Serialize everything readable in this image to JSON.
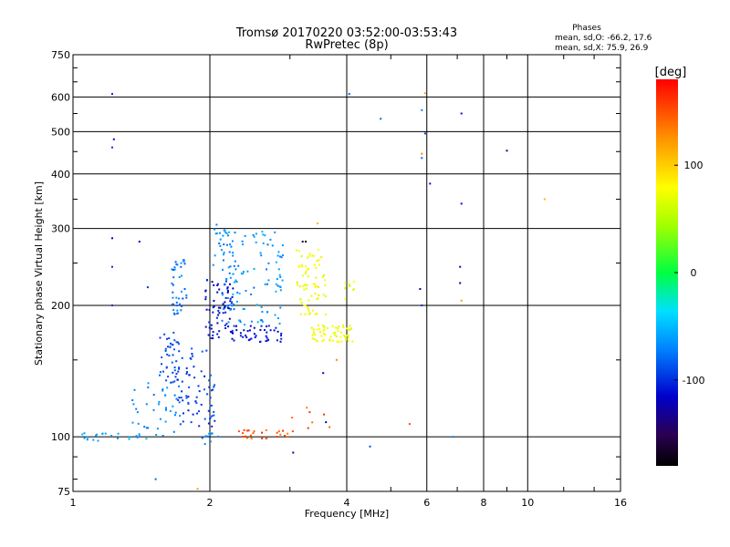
{
  "header": {
    "title_line1": "Tromsø 20170220 03:52:00-03:53:43",
    "title_line2": "RwPretec (8p)"
  },
  "stats": {
    "heading": "Phases",
    "line_o": "mean, sd,O: -66.2, 17.6",
    "line_x": "mean, sd,X:  75.9, 26.9"
  },
  "colorbar": {
    "unit": "[deg]",
    "range": [
      -180,
      180
    ],
    "ticks": [
      {
        "value": 100,
        "label": "100"
      },
      {
        "value": 0,
        "label": "0"
      },
      {
        "value": -100,
        "label": "-100"
      }
    ]
  },
  "chart_data": {
    "type": "scatter",
    "xlabel": "Frequency [MHz]",
    "ylabel": "Stationary phase Virtual Height [km]",
    "xscale": "log",
    "yscale": "log",
    "xlim": [
      1,
      16
    ],
    "ylim": [
      75,
      750
    ],
    "xticks": [
      {
        "value": 1,
        "label": "1"
      },
      {
        "value": 2,
        "label": "2"
      },
      {
        "value": 4,
        "label": "4"
      },
      {
        "value": 6,
        "label": "6"
      },
      {
        "value": 8,
        "label": "8"
      },
      {
        "value": 10,
        "label": "10"
      },
      {
        "value": 16,
        "label": "16"
      }
    ],
    "yticks": [
      {
        "value": 75,
        "label": "75"
      },
      {
        "value": 100,
        "label": "100"
      },
      {
        "value": 200,
        "label": "200"
      },
      {
        "value": 300,
        "label": "300"
      },
      {
        "value": 400,
        "label": "400"
      },
      {
        "value": 500,
        "label": "500"
      },
      {
        "value": 600,
        "label": "600"
      },
      {
        "value": 750,
        "label": "750"
      }
    ],
    "grid": true,
    "clusters": [
      {
        "x": [
          1.35,
          1.72
        ],
        "y": [
          100,
          135
        ],
        "n": 40,
        "phase": [
          -80,
          -60
        ]
      },
      {
        "x": [
          1.55,
          1.72
        ],
        "y": [
          130,
          175
        ],
        "n": 45,
        "phase": [
          -100,
          -80
        ]
      },
      {
        "x": [
          1.7,
          2.05
        ],
        "y": [
          105,
          160
        ],
        "n": 70,
        "phase": [
          -110,
          -80
        ]
      },
      {
        "x": [
          1.65,
          1.78
        ],
        "y": [
          190,
          260
        ],
        "n": 40,
        "phase": [
          -90,
          -60
        ]
      },
      {
        "x": [
          1.95,
          2.25
        ],
        "y": [
          165,
          230
        ],
        "n": 70,
        "phase": [
          -130,
          -100
        ]
      },
      {
        "x": [
          2.2,
          2.9
        ],
        "y": [
          165,
          180
        ],
        "n": 45,
        "phase": [
          -120,
          -100
        ]
      },
      {
        "x": [
          2.1,
          2.9
        ],
        "y": [
          180,
          300
        ],
        "n": 110,
        "phase": [
          -80,
          -50
        ]
      },
      {
        "x": [
          2.0,
          2.25
        ],
        "y": [
          240,
          315
        ],
        "n": 20,
        "phase": [
          -80,
          -60
        ]
      },
      {
        "x": [
          3.1,
          3.6
        ],
        "y": [
          190,
          270
        ],
        "n": 70,
        "phase": [
          60,
          90
        ]
      },
      {
        "x": [
          3.35,
          4.15
        ],
        "y": [
          165,
          180
        ],
        "n": 60,
        "phase": [
          60,
          90
        ]
      },
      {
        "x": [
          3.95,
          4.15
        ],
        "y": [
          205,
          235
        ],
        "n": 10,
        "phase": [
          60,
          80
        ]
      },
      {
        "x": [
          2.3,
          3.0
        ],
        "y": [
          99,
          104
        ],
        "n": 25,
        "phase": [
          130,
          170
        ]
      },
      {
        "x": [
          1.0,
          1.45
        ],
        "y": [
          97,
          102
        ],
        "n": 20,
        "phase": [
          -70,
          -50
        ]
      },
      {
        "x": [
          1.9,
          2.1
        ],
        "y": [
          96,
          102
        ],
        "n": 10,
        "phase": [
          -80,
          -60
        ]
      },
      {
        "x": [
          3.0,
          3.7
        ],
        "y": [
          100,
          120
        ],
        "n": 8,
        "phase": [
          130,
          170
        ]
      }
    ],
    "points": [
      {
        "x": 1.22,
        "y": 610,
        "phase": -100
      },
      {
        "x": 1.23,
        "y": 480,
        "phase": -120
      },
      {
        "x": 1.22,
        "y": 460,
        "phase": -100
      },
      {
        "x": 1.22,
        "y": 285,
        "phase": -120
      },
      {
        "x": 1.22,
        "y": 245,
        "phase": -100
      },
      {
        "x": 1.22,
        "y": 200,
        "phase": -100
      },
      {
        "x": 1.4,
        "y": 280,
        "phase": -120
      },
      {
        "x": 1.46,
        "y": 220,
        "phase": -100
      },
      {
        "x": 1.52,
        "y": 80,
        "phase": -80
      },
      {
        "x": 1.88,
        "y": 76,
        "phase": 120
      },
      {
        "x": 3.2,
        "y": 280,
        "phase": -160
      },
      {
        "x": 3.25,
        "y": 280,
        "phase": -170
      },
      {
        "x": 3.45,
        "y": 308,
        "phase": 110
      },
      {
        "x": 4.05,
        "y": 610,
        "phase": -80
      },
      {
        "x": 4.75,
        "y": 535,
        "phase": -80
      },
      {
        "x": 5.85,
        "y": 560,
        "phase": -70
      },
      {
        "x": 5.95,
        "y": 612,
        "phase": 120
      },
      {
        "x": 5.95,
        "y": 495,
        "phase": -100
      },
      {
        "x": 5.85,
        "y": 445,
        "phase": 130
      },
      {
        "x": 5.85,
        "y": 435,
        "phase": -80
      },
      {
        "x": 6.1,
        "y": 380,
        "phase": -110
      },
      {
        "x": 5.8,
        "y": 218,
        "phase": -120
      },
      {
        "x": 5.85,
        "y": 200,
        "phase": -100
      },
      {
        "x": 7.15,
        "y": 550,
        "phase": -110
      },
      {
        "x": 7.15,
        "y": 342,
        "phase": -110
      },
      {
        "x": 7.1,
        "y": 245,
        "phase": -120
      },
      {
        "x": 7.1,
        "y": 225,
        "phase": -120
      },
      {
        "x": 7.15,
        "y": 205,
        "phase": 120
      },
      {
        "x": 9.0,
        "y": 452,
        "phase": -140
      },
      {
        "x": 10.9,
        "y": 350,
        "phase": 110
      },
      {
        "x": 6.85,
        "y": 100,
        "phase": -70
      },
      {
        "x": 5.5,
        "y": 107,
        "phase": 150
      },
      {
        "x": 4.5,
        "y": 95,
        "phase": -90
      },
      {
        "x": 3.55,
        "y": 140,
        "phase": -120
      },
      {
        "x": 3.8,
        "y": 150,
        "phase": 130
      },
      {
        "x": 3.05,
        "y": 92,
        "phase": -130
      },
      {
        "x": 3.6,
        "y": 108,
        "phase": -120
      }
    ]
  }
}
